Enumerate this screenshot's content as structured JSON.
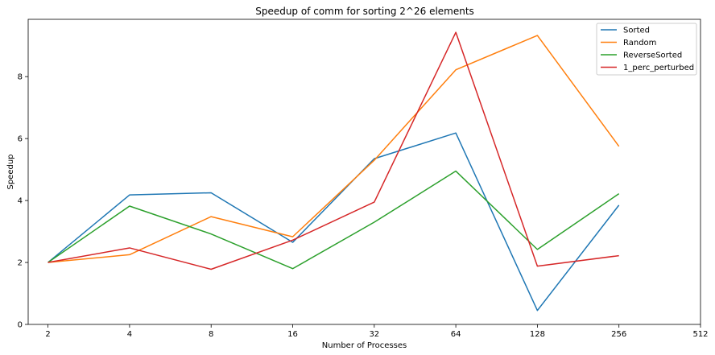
{
  "chart_data": {
    "type": "line",
    "title": "Speedup of comm for sorting 2^26 elements",
    "xlabel": "Number of Processes",
    "ylabel": "Speedup",
    "x_scale": "log2",
    "x": [
      2,
      4,
      8,
      16,
      32,
      64,
      128,
      256
    ],
    "x_ticks": [
      "2",
      "4",
      "8",
      "16",
      "32",
      "64",
      "128",
      "256",
      "512"
    ],
    "xlim": [
      1.69,
      512
    ],
    "y_ticks": [
      "0",
      "2",
      "4",
      "6",
      "8"
    ],
    "ylim": [
      0,
      9.85
    ],
    "grid": false,
    "legend_position": "top-right",
    "series": [
      {
        "name": "Sorted",
        "color": "#1f77b4",
        "values": [
          2.0,
          4.18,
          4.25,
          2.65,
          5.35,
          6.18,
          0.45,
          3.85
        ]
      },
      {
        "name": "Random",
        "color": "#ff7f0e",
        "values": [
          2.0,
          2.25,
          3.48,
          2.83,
          5.3,
          8.22,
          9.33,
          5.75
        ]
      },
      {
        "name": "ReverseSorted",
        "color": "#2ca02c",
        "values": [
          2.0,
          3.82,
          2.92,
          1.8,
          3.3,
          4.95,
          2.42,
          4.22
        ]
      },
      {
        "name": "1_perc_perturbed",
        "color": "#d62728",
        "values": [
          2.0,
          2.47,
          1.78,
          2.72,
          3.95,
          9.43,
          1.88,
          2.22
        ]
      }
    ]
  }
}
